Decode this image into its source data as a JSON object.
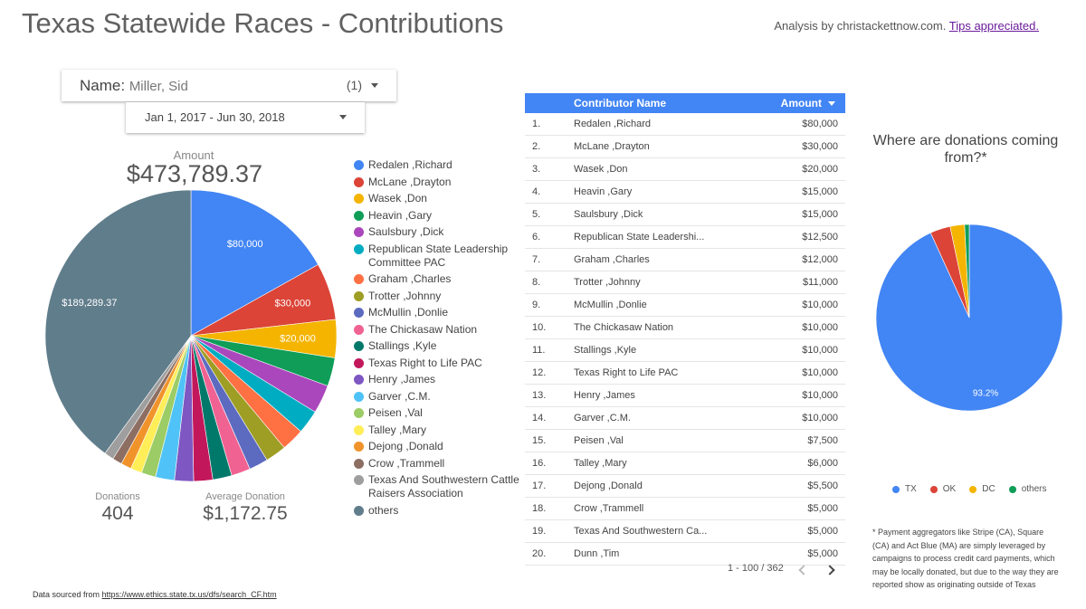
{
  "header": {
    "title": "Texas Statewide Races - Contributions",
    "credit_text": "Analysis by christackettnow.com.",
    "credit_link": "Tips appreciated."
  },
  "filters": {
    "name_label": "Name",
    "name_value": "Miller, Sid",
    "name_count": "(1)",
    "date_range": "Jan 1, 2017 - Jun 30, 2018"
  },
  "scorecards": {
    "amount_label": "Amount",
    "amount_value": "$473,789.37",
    "donations_label": "Donations",
    "donations_value": "404",
    "avg_label": "Average Donation",
    "avg_value": "$1,172.75"
  },
  "source": {
    "prefix": "Data sourced from ",
    "url": "https://www.ethics.state.tx.us/dfs/search_CF.htm"
  },
  "colors": {
    "accent": "#4285f4",
    "palette": [
      "#4285f4",
      "#db4437",
      "#f4b400",
      "#0f9d58",
      "#ab47bc",
      "#00acc1",
      "#ff7043",
      "#9e9d24",
      "#5c6bc0",
      "#f06292",
      "#00796b",
      "#c2185b",
      "#7e57c2",
      "#4fc3f7",
      "#9ccc65",
      "#ffee58",
      "#f0932b",
      "#8d6e63",
      "#9e9e9e",
      "#607d8b"
    ]
  },
  "chart_data": [
    {
      "type": "pie",
      "series_label": "Amount",
      "labels": [
        "Redalen ,Richard",
        "McLane ,Drayton",
        "Wasek ,Don",
        "Heavin ,Gary",
        "Saulsbury ,Dick",
        "Republican State Leadership Committee PAC",
        "Graham ,Charles",
        "Trotter ,Johnny",
        "McMullin ,Donlie",
        "The Chickasaw Nation",
        "Stallings ,Kyle",
        "Texas Right to Life PAC",
        "Henry ,James",
        "Garver ,C.M.",
        "Peisen ,Val",
        "Talley ,Mary",
        "Dejong ,Donald",
        "Crow ,Trammell",
        "Texas And Southwestern Cattle Raisers Association",
        "others"
      ],
      "values": [
        80000,
        30000,
        20000,
        15000,
        15000,
        12500,
        12000,
        11000,
        10000,
        10000,
        10000,
        10000,
        10000,
        10000,
        7500,
        6000,
        5500,
        5000,
        5000,
        189289.37
      ],
      "data_labels": {
        "0": "$80,000",
        "1": "$30,000",
        "2": "$20,000",
        "19": "$189,289.37"
      },
      "legend": "right"
    },
    {
      "type": "table",
      "columns": [
        "Contributor Name",
        "Amount"
      ],
      "rows": [
        [
          "1.",
          "Redalen ,Richard",
          "$80,000"
        ],
        [
          "2.",
          "McLane ,Drayton",
          "$30,000"
        ],
        [
          "3.",
          "Wasek ,Don",
          "$20,000"
        ],
        [
          "4.",
          "Heavin ,Gary",
          "$15,000"
        ],
        [
          "5.",
          "Saulsbury ,Dick",
          "$15,000"
        ],
        [
          "6.",
          "Republican State Leadershi...",
          "$12,500"
        ],
        [
          "7.",
          "Graham ,Charles",
          "$12,000"
        ],
        [
          "8.",
          "Trotter ,Johnny",
          "$11,000"
        ],
        [
          "9.",
          "McMullin ,Donlie",
          "$10,000"
        ],
        [
          "10.",
          "The Chickasaw Nation",
          "$10,000"
        ],
        [
          "11.",
          "Stallings ,Kyle",
          "$10,000"
        ],
        [
          "12.",
          "Texas Right to Life PAC",
          "$10,000"
        ],
        [
          "13.",
          "Henry ,James",
          "$10,000"
        ],
        [
          "14.",
          "Garver ,C.M.",
          "$10,000"
        ],
        [
          "15.",
          "Peisen ,Val",
          "$7,500"
        ],
        [
          "16.",
          "Talley ,Mary",
          "$6,000"
        ],
        [
          "17.",
          "Dejong ,Donald",
          "$5,500"
        ],
        [
          "18.",
          "Crow ,Trammell",
          "$5,000"
        ],
        [
          "19.",
          "Texas And Southwestern Ca...",
          "$5,000"
        ],
        [
          "20.",
          "Dunn ,Tim",
          "$5,000"
        ]
      ],
      "pager": "1 - 100 / 362"
    },
    {
      "type": "pie",
      "title": "Where are donations coming from?*",
      "labels": [
        "TX",
        "OK",
        "DC",
        "others"
      ],
      "values": [
        93.2,
        3.5,
        2.5,
        0.8
      ],
      "colors": [
        "#4285f4",
        "#db4437",
        "#f4b400",
        "#0f9d58"
      ],
      "data_labels": {
        "0": "93.2%"
      },
      "legend": "bottom"
    }
  ],
  "footnote": "* Payment aggregators like Stripe (CA), Square (CA) and Act Blue (MA) are simply leveraged by campaigns to process credit card payments, which may be locally donated, but due to the way they are reported show as originating outside of Texas"
}
